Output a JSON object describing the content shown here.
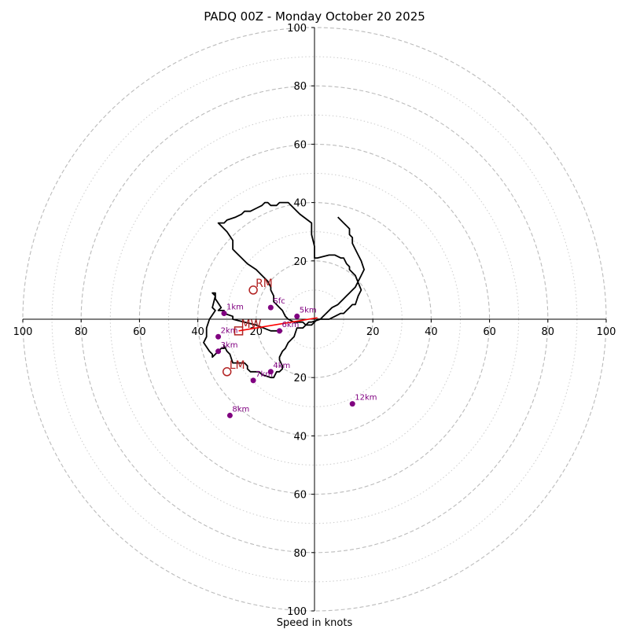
{
  "chart_data": {
    "type": "hodograph",
    "title": "PADQ 00Z - Monday October 20 2025",
    "xlabel": "Speed in knots",
    "range": [
      -100,
      100
    ],
    "major_rings": [
      20,
      40,
      60,
      80,
      100
    ],
    "minor_rings": [
      10,
      30,
      50,
      70,
      90
    ],
    "tick_values": [
      20,
      40,
      60,
      80,
      100
    ],
    "wind_trace": [
      [
        -11,
        4
      ],
      [
        -15,
        4
      ],
      [
        -20,
        2
      ],
      [
        -24,
        1
      ],
      [
        -28,
        0
      ],
      [
        -28,
        -1
      ],
      [
        -31,
        -2
      ],
      [
        -31,
        -3
      ],
      [
        -33,
        -3
      ],
      [
        -32,
        -4
      ],
      [
        -34,
        -7
      ],
      [
        -34,
        -9
      ],
      [
        -35,
        -9
      ],
      [
        -34,
        -8
      ],
      [
        -35,
        -4
      ],
      [
        -34,
        -3
      ],
      [
        -36,
        0
      ],
      [
        -37,
        3
      ],
      [
        -37,
        6
      ],
      [
        -38,
        8
      ],
      [
        -36,
        11
      ],
      [
        -35,
        12
      ],
      [
        -35,
        13
      ],
      [
        -34,
        12
      ],
      [
        -32,
        10
      ],
      [
        -31,
        10
      ],
      [
        -31,
        9
      ],
      [
        -30,
        11
      ],
      [
        -29,
        12
      ],
      [
        -28,
        15
      ],
      [
        -26,
        15
      ],
      [
        -25,
        15
      ],
      [
        -24,
        15
      ],
      [
        -23,
        16
      ],
      [
        -23,
        17
      ],
      [
        -22,
        18
      ],
      [
        -19,
        18
      ],
      [
        -18,
        19
      ],
      [
        -15,
        20
      ],
      [
        -14,
        20
      ],
      [
        -13,
        18
      ],
      [
        -12,
        18
      ],
      [
        -11,
        17
      ],
      [
        -11,
        16
      ],
      [
        -12,
        14
      ],
      [
        -12,
        13
      ],
      [
        -11,
        11
      ],
      [
        -10,
        10
      ],
      [
        -9,
        8
      ],
      [
        -7,
        6
      ],
      [
        -6,
        3
      ],
      [
        -4,
        3
      ],
      [
        -2,
        1
      ],
      [
        -1,
        1
      ],
      [
        2,
        0
      ],
      [
        5,
        0
      ],
      [
        7,
        -1
      ],
      [
        9,
        -2
      ],
      [
        10,
        -2
      ],
      [
        11,
        -3
      ],
      [
        12,
        -4
      ],
      [
        13,
        -5
      ],
      [
        14,
        -5
      ],
      [
        15,
        -8
      ],
      [
        16,
        -10
      ],
      [
        14,
        -15
      ],
      [
        13,
        -16
      ],
      [
        12,
        -17
      ],
      [
        12,
        -18
      ],
      [
        11,
        -19
      ],
      [
        10,
        -21
      ],
      [
        9,
        -21
      ],
      [
        7,
        -22
      ],
      [
        5,
        -22
      ],
      [
        1,
        -21
      ],
      [
        0,
        -21
      ],
      [
        0,
        -25
      ],
      [
        -1,
        -29
      ],
      [
        -1,
        -33
      ],
      [
        -5,
        -36
      ],
      [
        -6,
        -37
      ],
      [
        -9,
        -40
      ],
      [
        -10,
        -40
      ],
      [
        -12,
        -40
      ],
      [
        -13,
        -39
      ],
      [
        -15,
        -39
      ],
      [
        -16,
        -40
      ],
      [
        -17,
        -40
      ],
      [
        -18,
        -39
      ],
      [
        -20,
        -38
      ],
      [
        -22,
        -37
      ],
      [
        -24,
        -37
      ],
      [
        -25,
        -36
      ],
      [
        -27,
        -35
      ],
      [
        -30,
        -34
      ],
      [
        -31,
        -33
      ],
      [
        -33,
        -33
      ],
      [
        -32,
        -32
      ],
      [
        -30,
        -30
      ],
      [
        -28,
        -27
      ],
      [
        -28,
        -24
      ],
      [
        -27,
        -23
      ],
      [
        -25,
        -21
      ],
      [
        -23,
        -19
      ],
      [
        -20,
        -17
      ],
      [
        -18,
        -15
      ],
      [
        -16,
        -13
      ],
      [
        -15,
        -11
      ],
      [
        -15,
        -10
      ],
      [
        -14,
        -8
      ],
      [
        -14,
        -6
      ],
      [
        -13,
        -5
      ],
      [
        -12,
        -4
      ],
      [
        -11,
        -3
      ],
      [
        -10,
        -1
      ],
      [
        -9,
        0
      ],
      [
        -7,
        1
      ],
      [
        -6,
        1
      ],
      [
        -4,
        1
      ],
      [
        -3,
        2
      ],
      [
        -2,
        2
      ],
      [
        -1,
        2
      ],
      [
        0,
        1
      ],
      [
        1,
        0
      ],
      [
        2,
        0
      ],
      [
        3,
        -1
      ],
      [
        4,
        -2
      ],
      [
        6,
        -4
      ],
      [
        8,
        -5
      ],
      [
        10,
        -7
      ],
      [
        11,
        -8
      ],
      [
        12,
        -9
      ],
      [
        13,
        -10
      ],
      [
        14,
        -11
      ],
      [
        15,
        -13
      ],
      [
        16,
        -15
      ],
      [
        17,
        -17
      ],
      [
        16,
        -20
      ],
      [
        15,
        -22
      ],
      [
        14,
        -24
      ],
      [
        13,
        -26
      ],
      [
        13,
        -28
      ],
      [
        12,
        -29
      ],
      [
        12,
        -31
      ],
      [
        11,
        -32
      ],
      [
        10,
        -33
      ],
      [
        9,
        -34
      ],
      [
        8,
        -35
      ]
    ],
    "trace_note": "",
    "height_labels": [
      {
        "label": "Sfc",
        "u": -15,
        "v": -4
      },
      {
        "label": "1km",
        "u": -31,
        "v": -2
      },
      {
        "label": "2km",
        "u": -33,
        "v": 6
      },
      {
        "label": "3km",
        "u": -33,
        "v": 11
      },
      {
        "label": "4km",
        "u": -15,
        "v": 18
      },
      {
        "label": "5km",
        "u": -6,
        "v": -1
      },
      {
        "label": "6km",
        "u": -12,
        "v": 4
      },
      {
        "label": "7km",
        "u": -21,
        "v": 21
      },
      {
        "label": "8km",
        "u": -29,
        "v": 33
      },
      {
        "label": "12km",
        "u": 13,
        "v": 29
      }
    ],
    "motion_markers": [
      {
        "label": "LM",
        "u": -30,
        "v": 18,
        "shape": "circle"
      },
      {
        "label": "MW",
        "u": -26,
        "v": 4,
        "shape": "square"
      },
      {
        "label": "RM",
        "u": -21,
        "v": -10,
        "shape": "circle"
      }
    ],
    "colors": {
      "trace": "#000000",
      "height": "#800080",
      "motion": "#b22222",
      "shear": "#ff0000",
      "major_grid": "#bbbbbb",
      "minor_grid": "#cccccc"
    }
  }
}
